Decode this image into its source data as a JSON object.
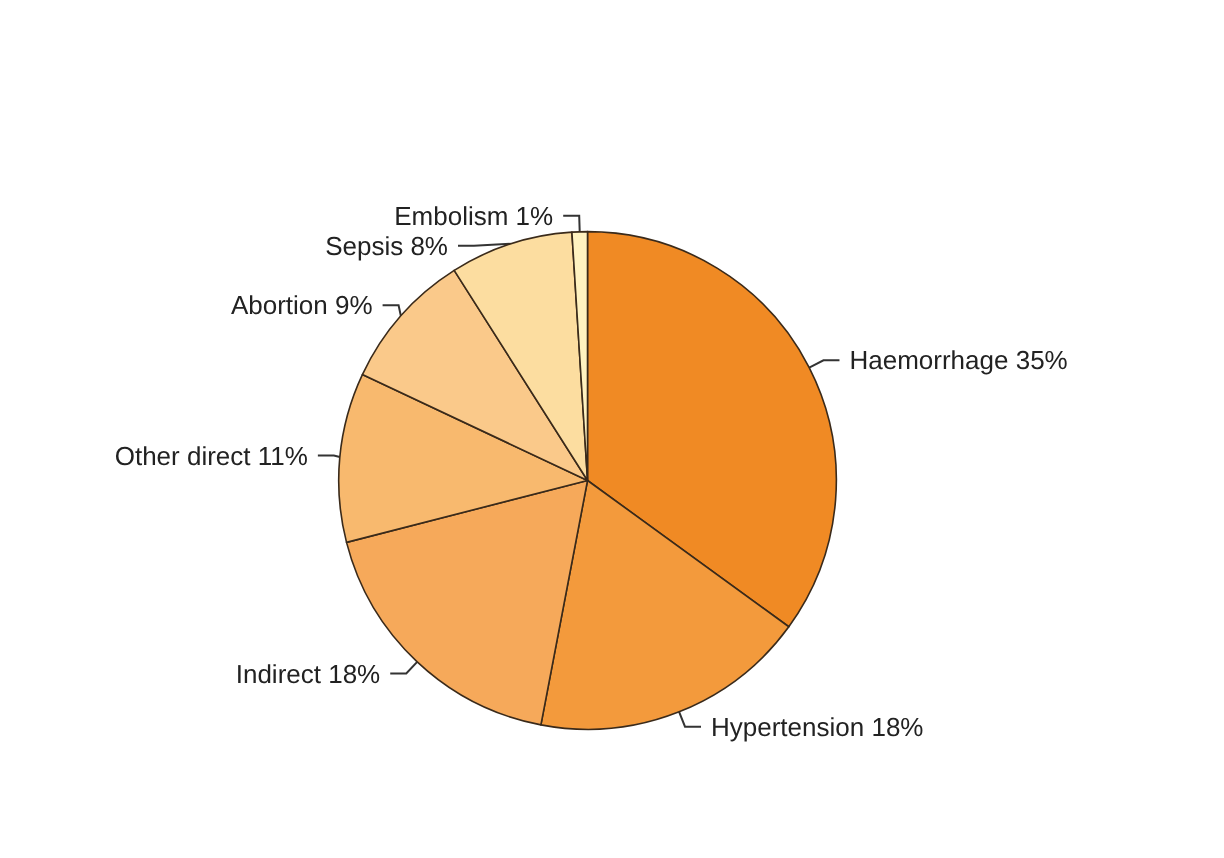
{
  "chart_data": {
    "type": "pie",
    "categories": [
      "Haemorrhage",
      "Hypertension",
      "Indirect",
      "Other direct",
      "Abortion",
      "Sepsis",
      "Embolism"
    ],
    "values": [
      35,
      18,
      18,
      11,
      9,
      8,
      1
    ],
    "value_labels": [
      "35%",
      "18%",
      "18%",
      "11%",
      "9%",
      "8%",
      "1%"
    ],
    "colors": [
      "#f08a24",
      "#f39a3c",
      "#f6a95a",
      "#f8b96e",
      "#fac98a",
      "#fcdda0",
      "#fff2c0"
    ],
    "legend": false
  }
}
